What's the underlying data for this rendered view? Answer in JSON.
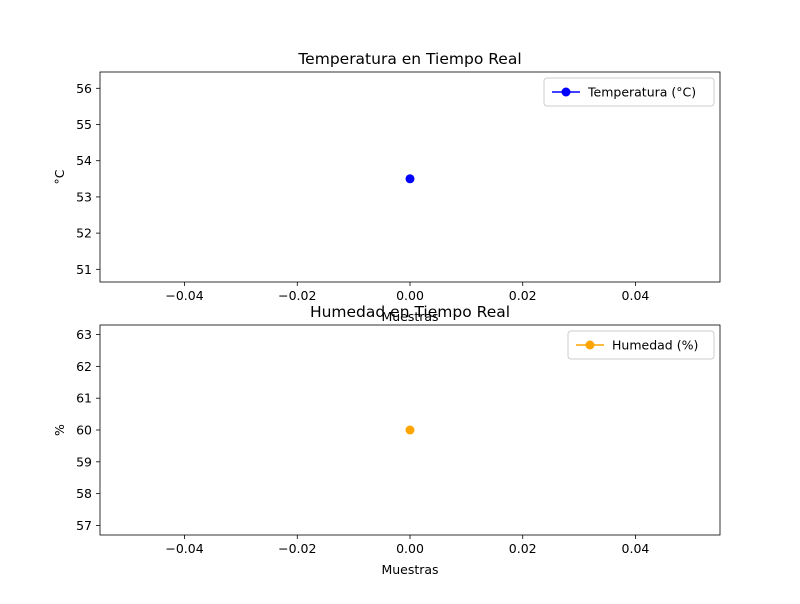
{
  "chart_data": [
    {
      "type": "line",
      "title": "Temperatura en Tiempo Real",
      "xlabel": "Muestras",
      "ylabel": "°C",
      "xlim": [
        -0.055,
        0.055
      ],
      "ylim": [
        50.65,
        56.45
      ],
      "xticks": [
        -0.04,
        -0.02,
        0.0,
        0.02,
        0.04
      ],
      "xtick_labels": [
        "−0.04",
        "−0.02",
        "0.00",
        "0.02",
        "0.04"
      ],
      "yticks": [
        51,
        52,
        53,
        54,
        55,
        56
      ],
      "ytick_labels": [
        "51",
        "52",
        "53",
        "54",
        "55",
        "56"
      ],
      "grid": false,
      "legend_position": "upper-right",
      "series": [
        {
          "name": "Temperatura (°C)",
          "color": "#0000ff",
          "marker": "circle",
          "x": [
            0
          ],
          "y": [
            53.5
          ]
        }
      ]
    },
    {
      "type": "line",
      "title": "Humedad en Tiempo Real",
      "xlabel": "Muestras",
      "ylabel": "%",
      "xlim": [
        -0.055,
        0.055
      ],
      "ylim": [
        56.7,
        63.3
      ],
      "xticks": [
        -0.04,
        -0.02,
        0.0,
        0.02,
        0.04
      ],
      "xtick_labels": [
        "−0.04",
        "−0.02",
        "0.00",
        "0.02",
        "0.04"
      ],
      "yticks": [
        57,
        58,
        59,
        60,
        61,
        62,
        63
      ],
      "ytick_labels": [
        "57",
        "58",
        "59",
        "60",
        "61",
        "62",
        "63"
      ],
      "grid": false,
      "legend_position": "upper-right",
      "series": [
        {
          "name": "Humedad (%)",
          "color": "#ffa500",
          "marker": "circle",
          "x": [
            0
          ],
          "y": [
            60
          ]
        }
      ]
    }
  ]
}
